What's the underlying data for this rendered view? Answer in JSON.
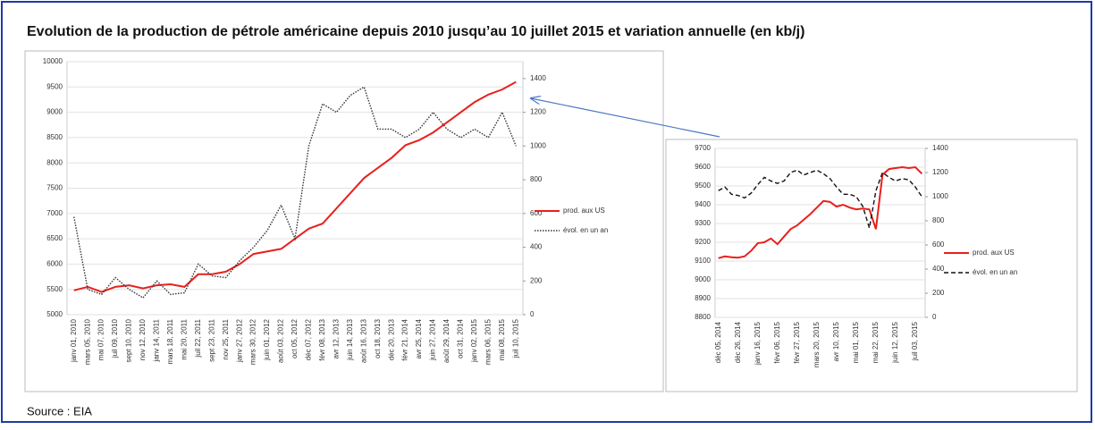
{
  "title": "Evolution de la production de pétrole américaine depuis 2010 jusqu’au 10 juillet 2015 et variation annuelle (en kb/j)",
  "source": "Source : EIA",
  "chart_data": [
    {
      "type": "line",
      "categories": [
        "janv 01, 2010",
        "mars 05, 2010",
        "mai 07, 2010",
        "juil 09, 2010",
        "sept 10, 2010",
        "nov 12, 2010",
        "janv 14, 2011",
        "mars 18, 2011",
        "mai 20, 2011",
        "juil 22, 2011",
        "sept 23, 2011",
        "nov 25, 2011",
        "janv 27, 2012",
        "mars 30, 2012",
        "juin 01, 2012",
        "août 03, 2012",
        "oct 05, 2012",
        "déc 07, 2012",
        "févr 08, 2013",
        "avr 12, 2013",
        "juin 14, 2013",
        "août 16, 2013",
        "oct 18, 2013",
        "déc 20, 2013",
        "févr 21, 2014",
        "avr 25, 2014",
        "juin 27, 2014",
        "août 29, 2014",
        "oct 31, 2014",
        "janv 02, 2015",
        "mars 06, 2015",
        "mai 08, 2015",
        "juil 10, 2015"
      ],
      "series": [
        {
          "name": "prod. aux US",
          "color": "#e8201c",
          "line_style": "solid",
          "values": [
            5480,
            5550,
            5450,
            5550,
            5580,
            5520,
            5580,
            5600,
            5550,
            5800,
            5800,
            5850,
            6000,
            6200,
            6250,
            6300,
            6500,
            6700,
            6800,
            7100,
            7400,
            7700,
            7900,
            8100,
            8350,
            8450,
            8600,
            8800,
            9000,
            9200,
            9350,
            9450,
            9600
          ]
        },
        {
          "name": "évol. en un an",
          "color": "#333333",
          "line_style": "dotted",
          "axis": "y2",
          "values": [
            580,
            150,
            120,
            220,
            150,
            100,
            200,
            120,
            130,
            300,
            230,
            220,
            320,
            400,
            500,
            650,
            450,
            1000,
            1250,
            1200,
            1300,
            1350,
            1100,
            1100,
            1050,
            1100,
            1200,
            1100,
            1050,
            1100,
            1050,
            1200,
            1000
          ]
        }
      ],
      "ylim": [
        5000,
        10000
      ],
      "yticks": [
        5000,
        5500,
        6000,
        6500,
        7000,
        7500,
        8000,
        8500,
        9000,
        9500,
        10000
      ],
      "y2lim": [
        0,
        1500
      ],
      "y2ticks": [
        0,
        200,
        400,
        600,
        800,
        1000,
        1200,
        1400
      ],
      "grid": true
    },
    {
      "type": "line",
      "categories": [
        "déc 05, 2014",
        null,
        null,
        "déc 26, 2014",
        null,
        null,
        "janv 16, 2015",
        null,
        null,
        "févr 06, 2015",
        null,
        null,
        "févr 27, 2015",
        null,
        null,
        "mars 20, 2015",
        null,
        null,
        "avr 10, 2015",
        null,
        null,
        "mai 01, 2015",
        null,
        null,
        "mai 22, 2015",
        null,
        null,
        "juin 12, 2015",
        null,
        null,
        "juil 03, 2015",
        null
      ],
      "series": [
        {
          "name": "prod. aux US",
          "color": "#e8201c",
          "line_style": "solid",
          "values": [
            9115,
            9125,
            9120,
            9118,
            9125,
            9155,
            9195,
            9200,
            9220,
            9190,
            9230,
            9270,
            9290,
            9320,
            9350,
            9385,
            9420,
            9415,
            9390,
            9400,
            9385,
            9375,
            9380,
            9375,
            9270,
            9560,
            9590,
            9595,
            9600,
            9595,
            9600,
            9565
          ]
        },
        {
          "name": "évol. en un an",
          "color": "#111111",
          "line_style": "dashed",
          "axis": "y2",
          "values": [
            1050,
            1080,
            1020,
            1010,
            990,
            1030,
            1100,
            1160,
            1130,
            1110,
            1130,
            1200,
            1220,
            1180,
            1200,
            1220,
            1190,
            1150,
            1080,
            1020,
            1020,
            1000,
            920,
            740,
            1050,
            1200,
            1160,
            1130,
            1150,
            1140,
            1080,
            1000
          ]
        }
      ],
      "ylim": [
        8800,
        9700
      ],
      "yticks": [
        8800,
        8900,
        9000,
        9100,
        9200,
        9300,
        9400,
        9500,
        9600,
        9700
      ],
      "y2lim": [
        0,
        1400
      ],
      "y2ticks": [
        0,
        200,
        400,
        600,
        800,
        1000,
        1200,
        1400
      ],
      "grid": true
    }
  ]
}
